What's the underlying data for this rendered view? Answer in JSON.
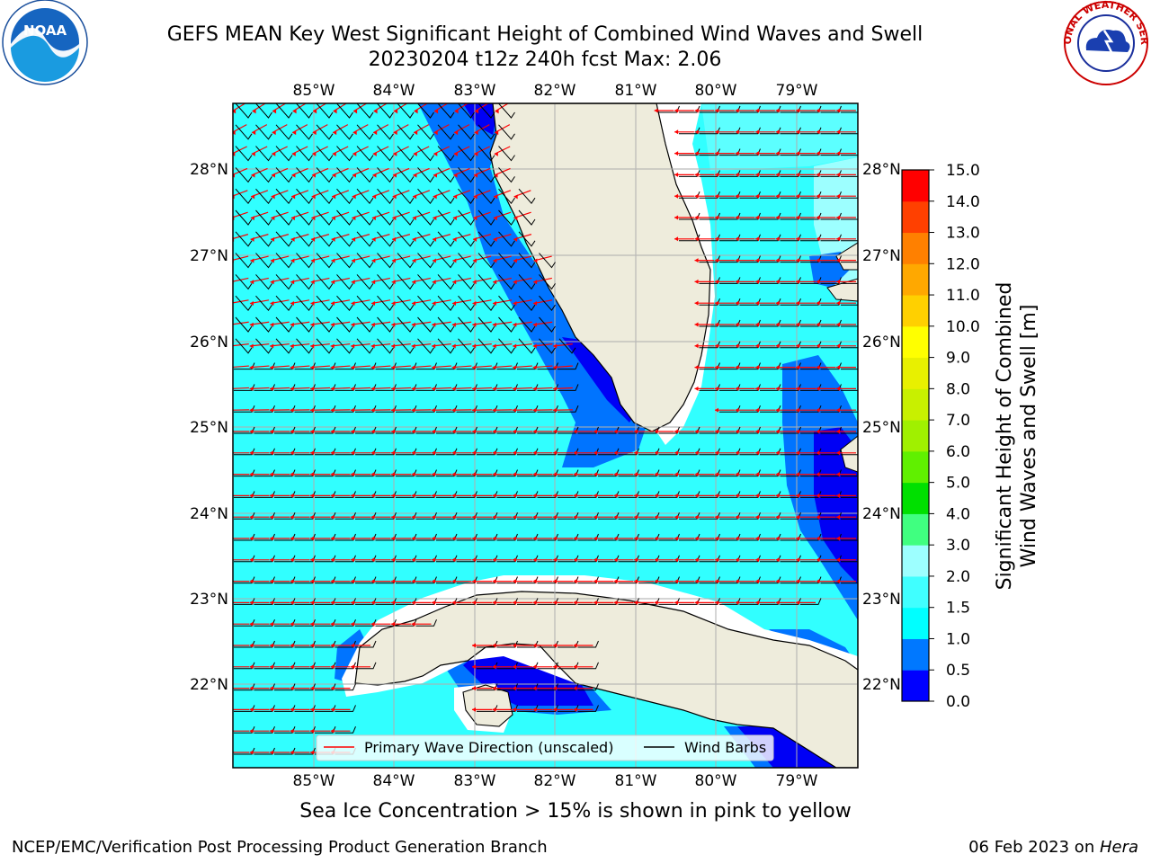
{
  "title": {
    "line1": "GEFS MEAN Key West Significant Height of Combined Wind Waves and Swell",
    "line2": "20230204 t12z 240h fcst   Max: 2.06"
  },
  "logos": {
    "left": {
      "icon": "noaa-logo",
      "text": "NOAA"
    },
    "right": {
      "icon": "nws-logo",
      "text": "NATIONAL WEATHER SERVICE"
    }
  },
  "map": {
    "x_ticks": [
      "85°W",
      "84°W",
      "83°W",
      "82°W",
      "81°W",
      "80°W",
      "79°W"
    ],
    "y_ticks": [
      "28°N",
      "27°N",
      "26°N",
      "25°N",
      "24°N",
      "23°N",
      "22°N"
    ],
    "legend": {
      "wave_label": "Primary Wave Direction (unscaled)",
      "barb_label": "Wind Barbs"
    },
    "colors": {
      "land": "#eeecdc",
      "sea_base": "#31ffff",
      "sea_light": "#9dffff",
      "band_05": "#0074ff",
      "band_0": "#0000f5",
      "wave_arrow": "#ff0000",
      "barb": "#000000",
      "grid": "#b0b0b0"
    }
  },
  "colorbar": {
    "label_line1": "Significant Height of Combined",
    "label_line2": "Wind Waves and Swell [m]",
    "ticks": [
      "0.0",
      "0.5",
      "1.0",
      "1.5",
      "2.0",
      "3.0",
      "4.0",
      "5.0",
      "6.0",
      "7.0",
      "8.0",
      "9.0",
      "10.0",
      "11.0",
      "12.0",
      "13.0",
      "14.0",
      "15.0"
    ],
    "colors": [
      "#0000ff",
      "#0078ff",
      "#00ffff",
      "#40ffff",
      "#9dffff",
      "#40ff80",
      "#00e000",
      "#60f000",
      "#a0f000",
      "#c8f000",
      "#e8f000",
      "#ffff00",
      "#ffd000",
      "#ffa800",
      "#ff8000",
      "#ff4000",
      "#ff0000"
    ]
  },
  "caption": "Sea Ice Concentration > 15% is shown in pink to yellow",
  "footer": {
    "left": "NCEP/EMC/Verification Post Processing Product Generation Branch",
    "right_date": "06 Feb 2023 on ",
    "right_host": "Hera"
  }
}
